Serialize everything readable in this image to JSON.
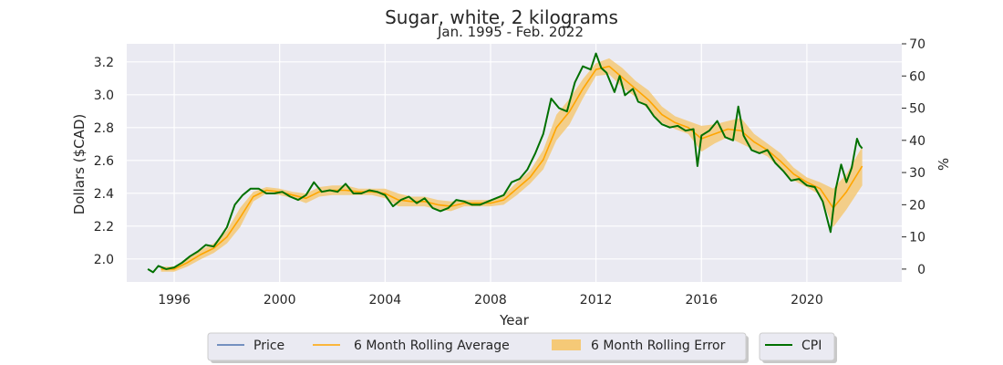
{
  "chart_data": {
    "type": "line",
    "title": "Sugar, white, 2 kilograms",
    "subtitle": "Jan. 1995 - Feb. 2022",
    "xlabel": "Year",
    "ylabel": "Dollars ($CAD)",
    "y2label": "%",
    "xlim": [
      1994.2,
      2023.6
    ],
    "ylim": [
      1.86,
      3.31
    ],
    "y2lim": [
      -4.0,
      70.0
    ],
    "x_ticks": [
      "1996",
      "2000",
      "2004",
      "2008",
      "2012",
      "2016",
      "2020"
    ],
    "y_ticks": [
      "2.0",
      "2.2",
      "2.4",
      "2.6",
      "2.8",
      "3.0",
      "3.2"
    ],
    "y2_ticks": [
      "0",
      "10",
      "20",
      "30",
      "40",
      "50",
      "60",
      "70"
    ],
    "grid": true,
    "legend_position": "bottom-center",
    "legend": {
      "main": [
        "Price",
        "6 Month Rolling Average",
        "6 Month Rolling Error"
      ],
      "secondary": [
        "CPI"
      ]
    },
    "colors": {
      "price": "#4c72b0",
      "rolling_average": "#ffa500",
      "rolling_error": "#f5c977",
      "cpi": "#007000",
      "background": "#eaeaf2"
    },
    "series": [
      {
        "name": "CPI",
        "axis": "right",
        "points": [
          [
            1995.0,
            0.0
          ],
          [
            1995.2,
            -1.0
          ],
          [
            1995.4,
            1.0
          ],
          [
            1995.7,
            0.0
          ],
          [
            1996.0,
            0.5
          ],
          [
            1996.3,
            2.0
          ],
          [
            1996.6,
            4.0
          ],
          [
            1996.9,
            5.5
          ],
          [
            1997.2,
            7.5
          ],
          [
            1997.5,
            7.0
          ],
          [
            1997.8,
            10.5
          ],
          [
            1998.0,
            13.0
          ],
          [
            1998.3,
            20.0
          ],
          [
            1998.6,
            23.0
          ],
          [
            1998.9,
            25.0
          ],
          [
            1999.2,
            25.0
          ],
          [
            1999.5,
            23.5
          ],
          [
            1999.8,
            23.5
          ],
          [
            2000.1,
            24.0
          ],
          [
            2000.4,
            22.5
          ],
          [
            2000.7,
            21.5
          ],
          [
            2001.0,
            23.0
          ],
          [
            2001.3,
            27.0
          ],
          [
            2001.6,
            24.0
          ],
          [
            2001.9,
            24.5
          ],
          [
            2002.2,
            24.0
          ],
          [
            2002.5,
            26.5
          ],
          [
            2002.8,
            23.5
          ],
          [
            2003.1,
            23.5
          ],
          [
            2003.4,
            24.5
          ],
          [
            2003.7,
            24.0
          ],
          [
            2004.0,
            23.0
          ],
          [
            2004.3,
            19.5
          ],
          [
            2004.6,
            21.5
          ],
          [
            2004.9,
            22.5
          ],
          [
            2005.2,
            20.5
          ],
          [
            2005.5,
            22.0
          ],
          [
            2005.8,
            19.0
          ],
          [
            2006.1,
            18.0
          ],
          [
            2006.4,
            19.0
          ],
          [
            2006.7,
            21.5
          ],
          [
            2007.0,
            21.0
          ],
          [
            2007.3,
            20.0
          ],
          [
            2007.6,
            20.0
          ],
          [
            2007.9,
            21.0
          ],
          [
            2008.2,
            22.0
          ],
          [
            2008.5,
            23.0
          ],
          [
            2008.8,
            27.0
          ],
          [
            2009.1,
            28.0
          ],
          [
            2009.4,
            31.0
          ],
          [
            2009.7,
            36.0
          ],
          [
            2010.0,
            42.0
          ],
          [
            2010.3,
            53.0
          ],
          [
            2010.6,
            50.0
          ],
          [
            2010.9,
            49.0
          ],
          [
            2011.2,
            58.0
          ],
          [
            2011.5,
            63.0
          ],
          [
            2011.8,
            62.0
          ],
          [
            2012.0,
            67.0
          ],
          [
            2012.2,
            62.5
          ],
          [
            2012.4,
            61.0
          ],
          [
            2012.7,
            55.0
          ],
          [
            2012.9,
            60.0
          ],
          [
            2013.1,
            54.0
          ],
          [
            2013.4,
            56.0
          ],
          [
            2013.6,
            52.0
          ],
          [
            2013.9,
            51.0
          ],
          [
            2014.2,
            47.5
          ],
          [
            2014.5,
            45.0
          ],
          [
            2014.8,
            44.0
          ],
          [
            2015.1,
            44.5
          ],
          [
            2015.4,
            43.0
          ],
          [
            2015.7,
            43.5
          ],
          [
            2015.85,
            32.0
          ],
          [
            2016.0,
            41.5
          ],
          [
            2016.3,
            43.0
          ],
          [
            2016.6,
            46.0
          ],
          [
            2016.9,
            41.0
          ],
          [
            2017.2,
            40.0
          ],
          [
            2017.4,
            50.5
          ],
          [
            2017.6,
            41.5
          ],
          [
            2017.9,
            37.0
          ],
          [
            2018.2,
            36.0
          ],
          [
            2018.5,
            37.0
          ],
          [
            2018.8,
            33.0
          ],
          [
            2019.1,
            30.5
          ],
          [
            2019.4,
            27.5
          ],
          [
            2019.7,
            28.0
          ],
          [
            2020.0,
            26.0
          ],
          [
            2020.3,
            25.5
          ],
          [
            2020.6,
            21.0
          ],
          [
            2020.9,
            11.5
          ],
          [
            2021.1,
            25.0
          ],
          [
            2021.3,
            32.5
          ],
          [
            2021.5,
            27.0
          ],
          [
            2021.7,
            31.5
          ],
          [
            2021.9,
            40.5
          ],
          [
            2022.0,
            38.5
          ],
          [
            2022.1,
            37.5
          ]
        ]
      },
      {
        "name": "6 Month Rolling Average",
        "axis": "right",
        "points": [
          [
            1995.5,
            0.0
          ],
          [
            1996.0,
            0.0
          ],
          [
            1996.5,
            2.0
          ],
          [
            1997.0,
            4.5
          ],
          [
            1997.5,
            6.5
          ],
          [
            1998.0,
            10.0
          ],
          [
            1998.5,
            16.0
          ],
          [
            1999.0,
            22.5
          ],
          [
            1999.5,
            24.5
          ],
          [
            2000.0,
            24.0
          ],
          [
            2000.5,
            23.0
          ],
          [
            2001.0,
            22.0
          ],
          [
            2001.5,
            24.0
          ],
          [
            2002.0,
            24.5
          ],
          [
            2002.5,
            24.5
          ],
          [
            2003.0,
            24.0
          ],
          [
            2003.5,
            24.0
          ],
          [
            2004.0,
            23.5
          ],
          [
            2004.5,
            21.5
          ],
          [
            2005.0,
            21.0
          ],
          [
            2005.5,
            21.0
          ],
          [
            2006.0,
            20.0
          ],
          [
            2006.5,
            19.5
          ],
          [
            2007.0,
            20.5
          ],
          [
            2007.5,
            20.5
          ],
          [
            2008.0,
            20.5
          ],
          [
            2008.5,
            21.5
          ],
          [
            2009.0,
            25.0
          ],
          [
            2009.5,
            28.5
          ],
          [
            2010.0,
            34.0
          ],
          [
            2010.5,
            44.0
          ],
          [
            2011.0,
            49.0
          ],
          [
            2011.5,
            56.0
          ],
          [
            2012.0,
            62.0
          ],
          [
            2012.5,
            63.0
          ],
          [
            2013.0,
            59.5
          ],
          [
            2013.5,
            56.0
          ],
          [
            2014.0,
            52.5
          ],
          [
            2014.5,
            48.0
          ],
          [
            2015.0,
            45.5
          ],
          [
            2015.5,
            44.0
          ],
          [
            2016.0,
            40.5
          ],
          [
            2016.5,
            42.0
          ],
          [
            2017.0,
            43.5
          ],
          [
            2017.5,
            43.0
          ],
          [
            2018.0,
            39.5
          ],
          [
            2018.5,
            37.0
          ],
          [
            2019.0,
            33.5
          ],
          [
            2019.5,
            29.5
          ],
          [
            2020.0,
            27.0
          ],
          [
            2020.5,
            25.0
          ],
          [
            2021.0,
            19.0
          ],
          [
            2021.5,
            24.0
          ],
          [
            2022.1,
            32.0
          ]
        ]
      }
    ],
    "rolling_error_band": {
      "axis": "right",
      "points": [
        [
          1995.5,
          -0.8,
          0.8
        ],
        [
          1996.0,
          -0.8,
          0.8
        ],
        [
          1996.5,
          0.8,
          3.2
        ],
        [
          1997.0,
          3.0,
          6.0
        ],
        [
          1997.5,
          5.0,
          8.0
        ],
        [
          1998.0,
          8.0,
          12.0
        ],
        [
          1998.5,
          13.0,
          19.0
        ],
        [
          1999.0,
          21.0,
          24.0
        ],
        [
          1999.5,
          23.5,
          25.5
        ],
        [
          2000.0,
          23.0,
          25.0
        ],
        [
          2000.5,
          22.0,
          24.0
        ],
        [
          2001.0,
          20.5,
          23.5
        ],
        [
          2001.5,
          22.5,
          25.5
        ],
        [
          2002.0,
          23.0,
          26.0
        ],
        [
          2002.5,
          23.0,
          26.0
        ],
        [
          2003.0,
          23.0,
          25.0
        ],
        [
          2003.5,
          23.0,
          25.0
        ],
        [
          2004.0,
          22.0,
          25.0
        ],
        [
          2004.5,
          19.5,
          23.5
        ],
        [
          2005.0,
          19.5,
          22.5
        ],
        [
          2005.5,
          19.5,
          22.5
        ],
        [
          2006.0,
          18.5,
          21.5
        ],
        [
          2006.5,
          18.0,
          21.0
        ],
        [
          2007.0,
          19.5,
          21.5
        ],
        [
          2007.5,
          19.5,
          21.5
        ],
        [
          2008.0,
          19.5,
          21.5
        ],
        [
          2008.5,
          20.0,
          23.0
        ],
        [
          2009.0,
          23.0,
          27.0
        ],
        [
          2009.5,
          26.5,
          30.5
        ],
        [
          2010.0,
          31.0,
          37.0
        ],
        [
          2010.5,
          40.0,
          48.0
        ],
        [
          2011.0,
          45.0,
          53.0
        ],
        [
          2011.5,
          53.0,
          59.0
        ],
        [
          2012.0,
          60.0,
          64.0
        ],
        [
          2012.5,
          60.5,
          65.5
        ],
        [
          2013.0,
          56.5,
          62.5
        ],
        [
          2013.5,
          53.5,
          58.5
        ],
        [
          2014.0,
          49.5,
          55.5
        ],
        [
          2014.5,
          45.5,
          50.5
        ],
        [
          2015.0,
          43.5,
          47.5
        ],
        [
          2015.5,
          42.0,
          46.0
        ],
        [
          2016.0,
          36.5,
          44.5
        ],
        [
          2016.5,
          39.0,
          45.0
        ],
        [
          2017.0,
          41.0,
          46.0
        ],
        [
          2017.5,
          39.0,
          47.0
        ],
        [
          2018.0,
          37.0,
          42.0
        ],
        [
          2018.5,
          35.0,
          39.0
        ],
        [
          2019.0,
          31.0,
          36.0
        ],
        [
          2019.5,
          27.5,
          31.5
        ],
        [
          2020.0,
          25.5,
          28.5
        ],
        [
          2020.5,
          23.0,
          27.0
        ],
        [
          2021.0,
          13.0,
          25.0
        ],
        [
          2021.5,
          18.5,
          29.5
        ],
        [
          2022.1,
          26.0,
          38.0
        ]
      ]
    }
  }
}
